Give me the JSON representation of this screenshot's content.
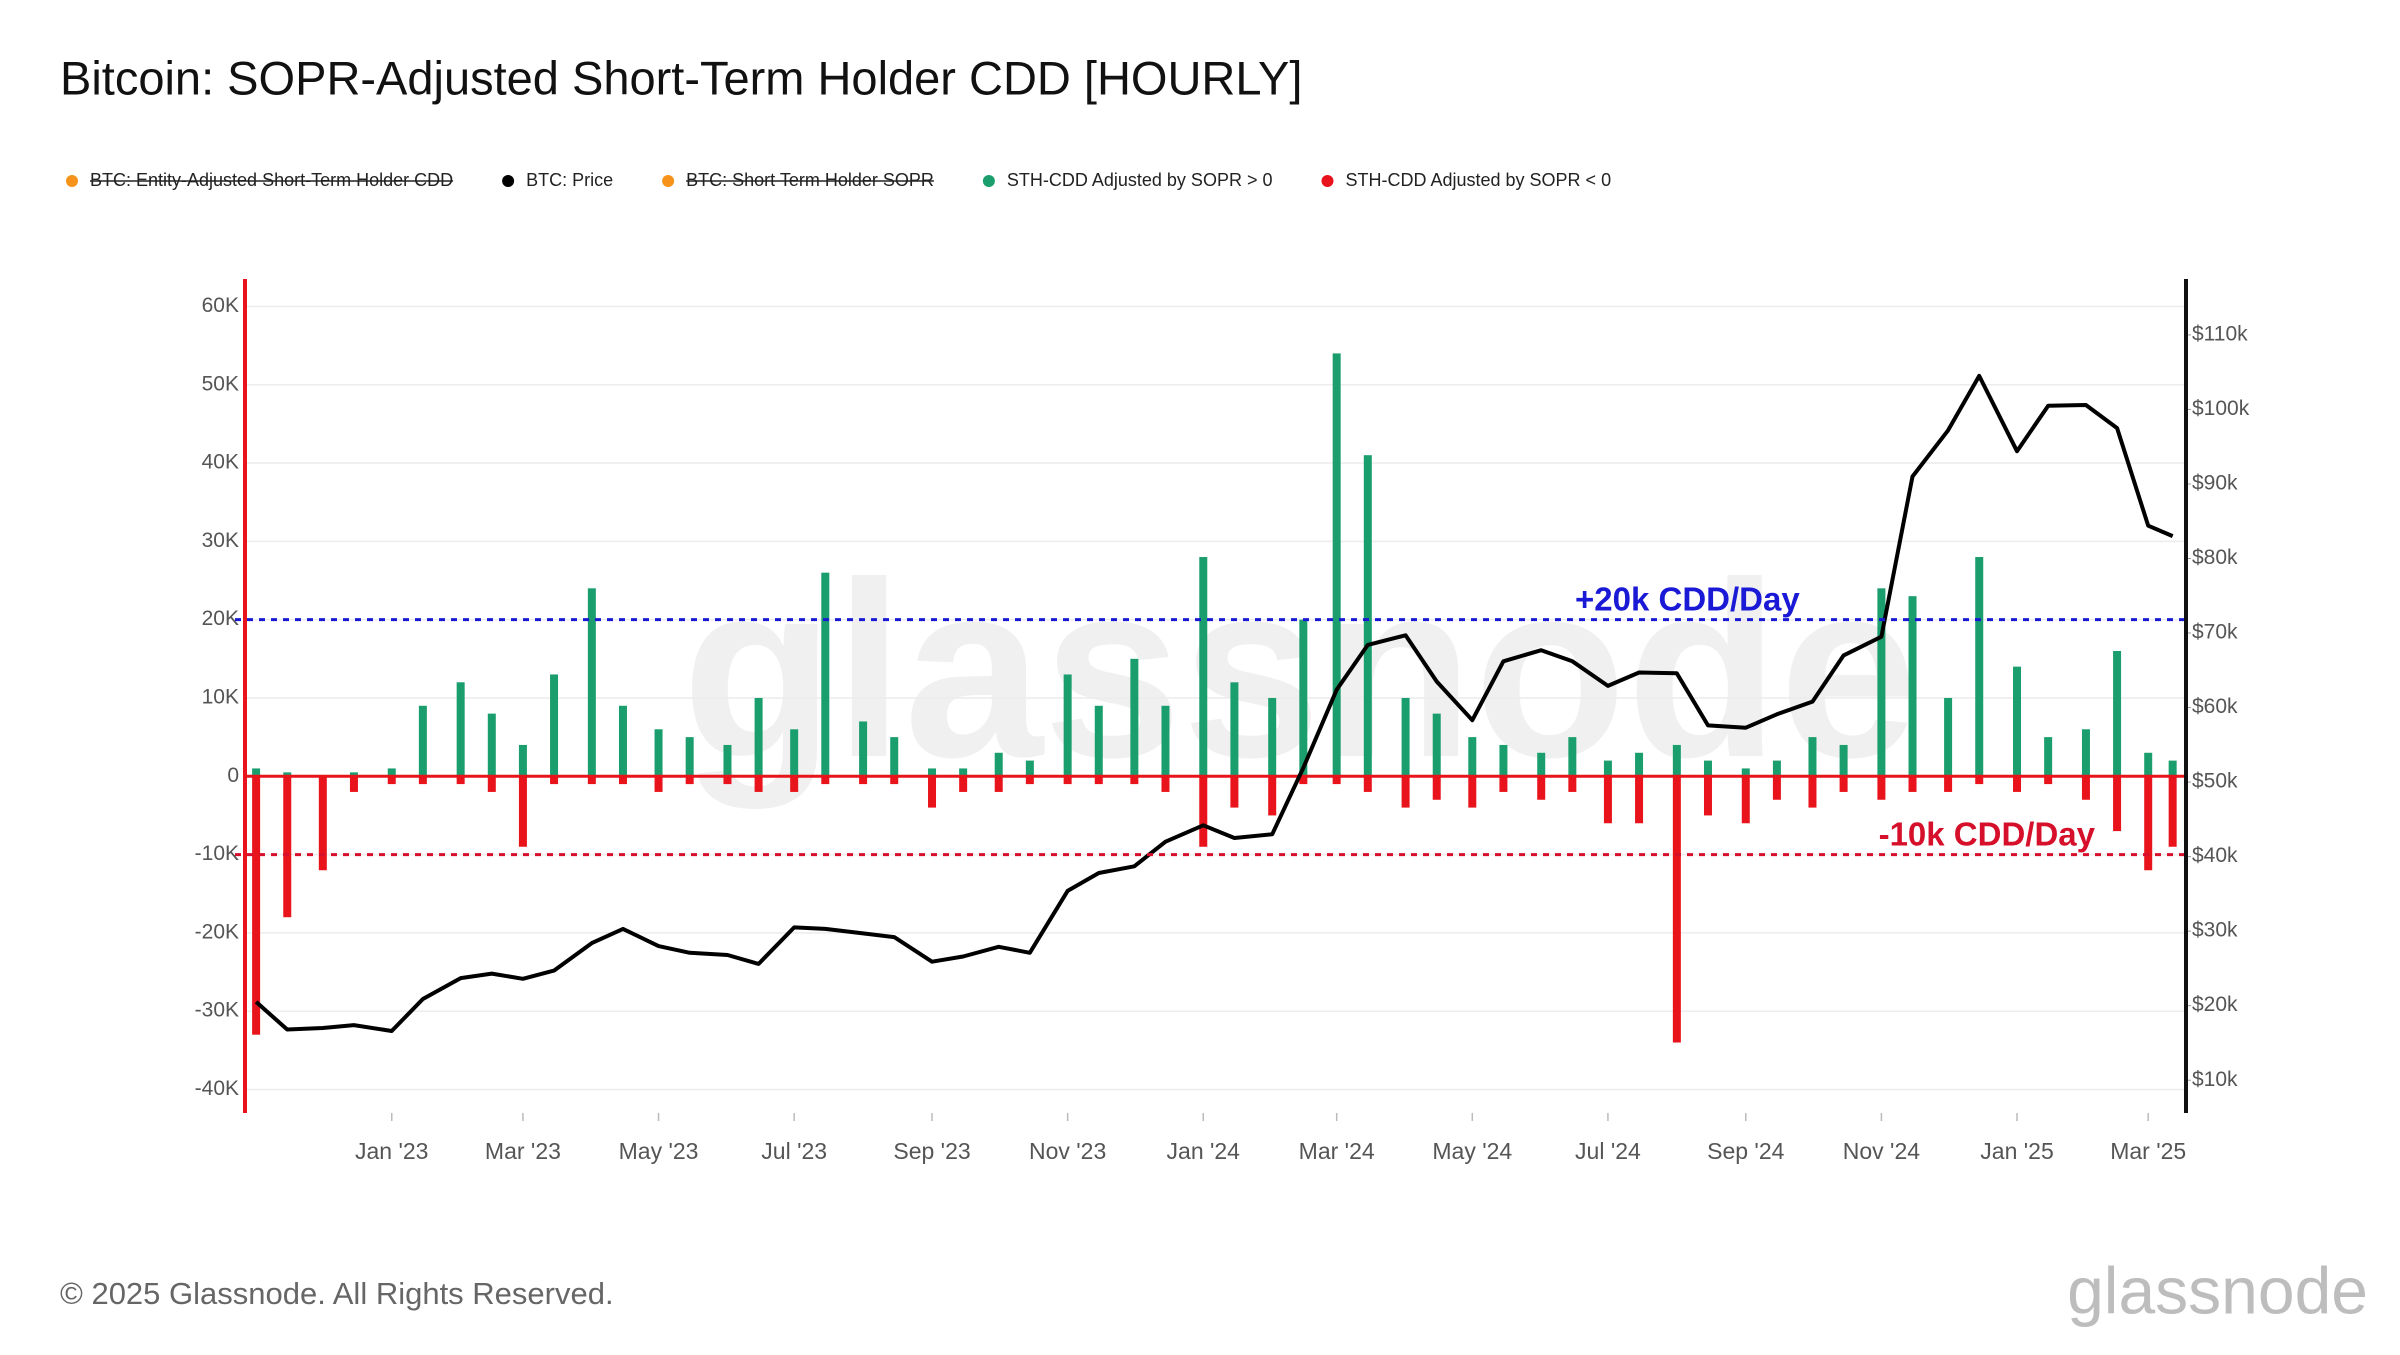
{
  "chart_data": {
    "type": "combo",
    "title": "Bitcoin: SOPR-Adjusted Short-Term Holder CDD [HOURLY]",
    "footer": "© 2025 Glassnode. All Rights Reserved.",
    "brand": "glassnode",
    "x": [
      "2022-11-01",
      "2022-11-15",
      "2022-12-01",
      "2022-12-15",
      "2023-01-01",
      "2023-01-15",
      "2023-02-01",
      "2023-02-15",
      "2023-03-01",
      "2023-03-15",
      "2023-04-01",
      "2023-04-15",
      "2023-05-01",
      "2023-05-15",
      "2023-06-01",
      "2023-06-15",
      "2023-07-01",
      "2023-07-15",
      "2023-08-01",
      "2023-08-15",
      "2023-09-01",
      "2023-09-15",
      "2023-10-01",
      "2023-10-15",
      "2023-11-01",
      "2023-11-15",
      "2023-12-01",
      "2023-12-15",
      "2024-01-01",
      "2024-01-15",
      "2024-02-01",
      "2024-02-15",
      "2024-03-01",
      "2024-03-15",
      "2024-04-01",
      "2024-04-15",
      "2024-05-01",
      "2024-05-15",
      "2024-06-01",
      "2024-06-15",
      "2024-07-01",
      "2024-07-15",
      "2024-08-01",
      "2024-08-15",
      "2024-09-01",
      "2024-09-15",
      "2024-10-01",
      "2024-10-15",
      "2024-11-01",
      "2024-11-15",
      "2024-12-01",
      "2024-12-15",
      "2025-01-01",
      "2025-01-15",
      "2025-02-01",
      "2025-02-15",
      "2025-03-01",
      "2025-03-12"
    ],
    "xlim": [
      "2022-10-27",
      "2025-03-18"
    ],
    "xticks": [
      {
        "value": "2023-01-01",
        "label": "Jan '23"
      },
      {
        "value": "2023-03-01",
        "label": "Mar '23"
      },
      {
        "value": "2023-05-01",
        "label": "May '23"
      },
      {
        "value": "2023-07-01",
        "label": "Jul '23"
      },
      {
        "value": "2023-09-01",
        "label": "Sep '23"
      },
      {
        "value": "2023-11-01",
        "label": "Nov '23"
      },
      {
        "value": "2024-01-01",
        "label": "Jan '24"
      },
      {
        "value": "2024-03-01",
        "label": "Mar '24"
      },
      {
        "value": "2024-05-01",
        "label": "May '24"
      },
      {
        "value": "2024-07-01",
        "label": "Jul '24"
      },
      {
        "value": "2024-09-01",
        "label": "Sep '24"
      },
      {
        "value": "2024-11-01",
        "label": "Nov '24"
      },
      {
        "value": "2025-01-01",
        "label": "Jan '25"
      },
      {
        "value": "2025-03-01",
        "label": "Mar '25"
      }
    ],
    "ylim": [
      -43000,
      63500
    ],
    "yticks": [
      {
        "value": -40000,
        "label": "-40K"
      },
      {
        "value": -30000,
        "label": "-30K"
      },
      {
        "value": -20000,
        "label": "-20K"
      },
      {
        "value": -10000,
        "label": "-10K"
      },
      0,
      {
        "value": 10000,
        "label": "10K"
      },
      {
        "value": 20000,
        "label": "20K"
      },
      {
        "value": 30000,
        "label": "30K"
      },
      {
        "value": 40000,
        "label": "40K"
      },
      {
        "value": 50000,
        "label": "50K"
      },
      {
        "value": 60000,
        "label": "60K"
      }
    ],
    "y2lim": [
      5600,
      117500
    ],
    "y2ticks": [
      {
        "value": 10000,
        "label": "$10k"
      },
      {
        "value": 20000,
        "label": "$20k"
      },
      {
        "value": 30000,
        "label": "$30k"
      },
      {
        "value": 40000,
        "label": "$40k"
      },
      {
        "value": 50000,
        "label": "$50k"
      },
      {
        "value": 60000,
        "label": "$60k"
      },
      {
        "value": 70000,
        "label": "$70k"
      },
      {
        "value": 80000,
        "label": "$80k"
      },
      {
        "value": 90000,
        "label": "$90k"
      },
      {
        "value": 100000,
        "label": "$100k"
      },
      {
        "value": 110000,
        "label": "$110k"
      }
    ],
    "grid": true,
    "series": [
      {
        "name": "BTC: Entity-Adjusted Short-Term Holder CDD",
        "color": "#f7931a",
        "hidden": true
      },
      {
        "name": "BTC: Price",
        "color": "#000000",
        "type": "line",
        "axis": "y2",
        "values": [
          20500,
          16800,
          17000,
          17400,
          16600,
          20900,
          23700,
          24300,
          23600,
          24700,
          28400,
          30300,
          28000,
          27100,
          26800,
          25600,
          30500,
          30300,
          29700,
          29200,
          25900,
          26600,
          27900,
          27100,
          35400,
          37800,
          38700,
          42000,
          44200,
          42500,
          43000,
          51900,
          62400,
          68400,
          69700,
          63500,
          58300,
          66200,
          67700,
          66200,
          62900,
          64700,
          64600,
          57600,
          57300,
          59100,
          60800,
          67000,
          69500,
          91000,
          97200,
          104500,
          94400,
          100500,
          100600,
          97500,
          84400,
          83000
        ]
      },
      {
        "name": "BTC: Short Term Holder SOPR",
        "color": "#f7931a",
        "hidden": true
      },
      {
        "name": "STH-CDD Adjusted by SOPR > 0",
        "color": "#1a9e6e",
        "type": "bar",
        "values": [
          1000,
          500,
          0,
          500,
          1000,
          9000,
          12000,
          8000,
          4000,
          13000,
          24000,
          9000,
          6000,
          5000,
          4000,
          10000,
          6000,
          26000,
          7000,
          5000,
          1000,
          1000,
          3000,
          2000,
          13000,
          9000,
          15000,
          9000,
          28000,
          12000,
          10000,
          20000,
          54000,
          41000,
          10000,
          8000,
          5000,
          4000,
          3000,
          5000,
          2000,
          3000,
          4000,
          2000,
          1000,
          2000,
          5000,
          4000,
          24000,
          23000,
          10000,
          28000,
          14000,
          5000,
          6000,
          16000,
          3000,
          2000
        ]
      },
      {
        "name": "STH-CDD Adjusted by SOPR < 0",
        "color": "#e8131b",
        "type": "bar",
        "values": [
          -33000,
          -18000,
          -12000,
          -2000,
          -1000,
          -1000,
          -1000,
          -2000,
          -9000,
          -1000,
          -1000,
          -1000,
          -2000,
          -1000,
          -1000,
          -2000,
          -2000,
          -1000,
          -1000,
          -1000,
          -4000,
          -2000,
          -2000,
          -1000,
          -1000,
          -1000,
          -1000,
          -2000,
          -9000,
          -4000,
          -5000,
          -1000,
          -1000,
          -2000,
          -4000,
          -3000,
          -4000,
          -2000,
          -3000,
          -2000,
          -6000,
          -6000,
          -34000,
          -5000,
          -6000,
          -3000,
          -4000,
          -2000,
          -3000,
          -2000,
          -2000,
          -1000,
          -2000,
          -1000,
          -3000,
          -7000,
          -12000,
          -9000
        ]
      }
    ],
    "reference_lines": [
      {
        "value": 20000,
        "label": "+20k CDD/Day",
        "color": "#1a1ad6"
      },
      {
        "value": -10000,
        "label": "-10k CDD/Day",
        "color": "#d6102a"
      }
    ]
  }
}
